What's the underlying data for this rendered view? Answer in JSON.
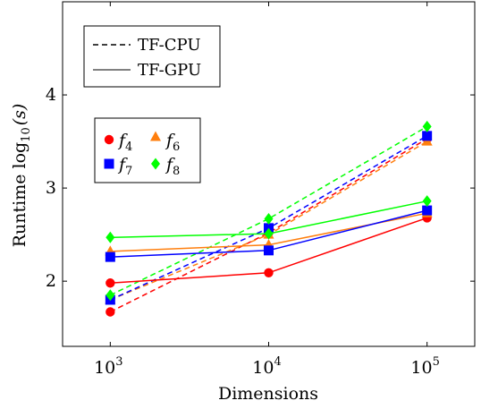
{
  "chart_data": {
    "type": "line",
    "xlabel": "Dimensions",
    "ylabel_prefix": "Runtime log",
    "ylabel_sub": "10",
    "ylabel_arg": "(s)",
    "x_scale": "log",
    "x": [
      1000,
      10000,
      100000
    ],
    "xticks": [
      {
        "value": 1000,
        "base": "10",
        "exp": "3"
      },
      {
        "value": 10000,
        "base": "10",
        "exp": "4"
      },
      {
        "value": 100000,
        "base": "10",
        "exp": "5"
      }
    ],
    "yticks": [
      2,
      3,
      4
    ],
    "ytick_labels": [
      "2",
      "3",
      "4"
    ],
    "xlim": [
      500,
      200000
    ],
    "ylim": [
      1.3,
      5.0
    ],
    "grid": false,
    "style_legend": {
      "placement": "top-left",
      "entries": [
        {
          "label": "TF-CPU",
          "dash": true
        },
        {
          "label": "TF-GPU",
          "dash": false
        }
      ]
    },
    "function_legend": {
      "placement": "upper-left",
      "entries": [
        {
          "func": "f",
          "sub": "4",
          "color": "#ff0000",
          "marker": "circle"
        },
        {
          "func": "f",
          "sub": "6",
          "color": "#ff7f0e",
          "marker": "triangle"
        },
        {
          "func": "f",
          "sub": "7",
          "color": "#0000ff",
          "marker": "square"
        },
        {
          "func": "f",
          "sub": "8",
          "color": "#00ff00",
          "marker": "diamond"
        }
      ]
    },
    "series": [
      {
        "func": "f4",
        "device": "CPU",
        "color": "#ff0000",
        "marker": "circle",
        "dashed": true,
        "values": [
          1.67,
          2.52,
          3.53
        ]
      },
      {
        "func": "f6",
        "device": "CPU",
        "color": "#ff7f0e",
        "marker": "triangle",
        "dashed": true,
        "values": [
          1.8,
          2.5,
          3.5
        ]
      },
      {
        "func": "f7",
        "device": "CPU",
        "color": "#0000ff",
        "marker": "square",
        "dashed": true,
        "values": [
          1.8,
          2.57,
          3.56
        ]
      },
      {
        "func": "f8",
        "device": "CPU",
        "color": "#00ff00",
        "marker": "diamond",
        "dashed": true,
        "values": [
          1.85,
          2.67,
          3.66
        ]
      },
      {
        "func": "f4",
        "device": "GPU",
        "color": "#ff0000",
        "marker": "circle",
        "dashed": false,
        "values": [
          1.98,
          2.09,
          2.68
        ]
      },
      {
        "func": "f6",
        "device": "GPU",
        "color": "#ff7f0e",
        "marker": "triangle",
        "dashed": false,
        "values": [
          2.32,
          2.39,
          2.73
        ]
      },
      {
        "func": "f7",
        "device": "GPU",
        "color": "#0000ff",
        "marker": "square",
        "dashed": false,
        "values": [
          2.26,
          2.33,
          2.76
        ]
      },
      {
        "func": "f8",
        "device": "GPU",
        "color": "#00ff00",
        "marker": "diamond",
        "dashed": false,
        "values": [
          2.47,
          2.51,
          2.86
        ]
      }
    ]
  }
}
